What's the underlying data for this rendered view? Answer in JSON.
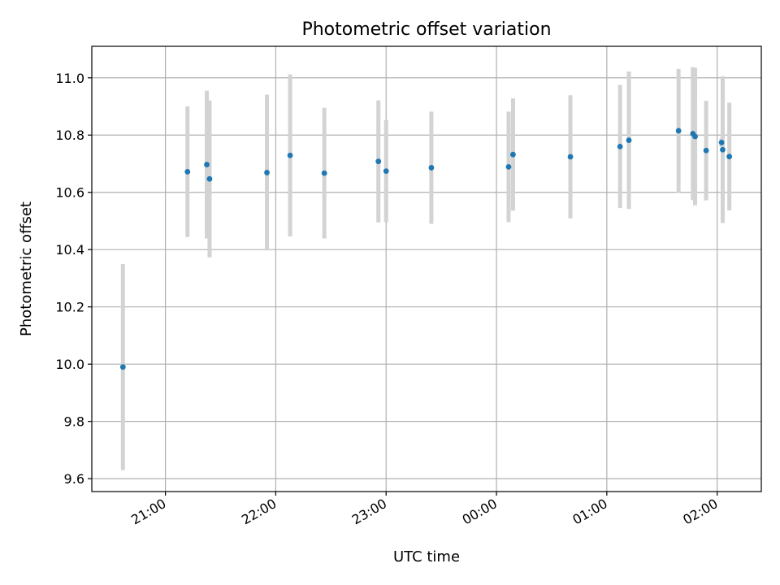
{
  "chart_data": {
    "type": "scatter",
    "title": "Photometric offset variation",
    "xlabel": "UTC time",
    "ylabel": "Photometric offset",
    "x_unit": "UTC time of night, tick labels HH:MM",
    "xlim": [
      "20:20",
      "02:24"
    ],
    "ylim": [
      9.555,
      11.11
    ],
    "grid": true,
    "x_ticks": [
      "21:00",
      "22:00",
      "23:00",
      "00:00",
      "01:00",
      "02:00"
    ],
    "y_ticks": [
      "9.6",
      "9.8",
      "10.0",
      "10.2",
      "10.4",
      "10.6",
      "10.8",
      "11.0"
    ],
    "x_tick_values": [
      21.0,
      22.0,
      23.0,
      24.0,
      25.0,
      26.0
    ],
    "y_tick_values": [
      9.6,
      9.8,
      10.0,
      10.2,
      10.4,
      10.6,
      10.8,
      11.0
    ],
    "x_range_hours": [
      20.333,
      26.4
    ],
    "point_color": "#1f77b4",
    "errorbar_color": "#d3d3d3",
    "series": [
      {
        "points": [
          {
            "x": 20.615,
            "y": 9.99,
            "err": 0.36
          },
          {
            "x": 21.2,
            "y": 10.672,
            "err": 0.228
          },
          {
            "x": 21.375,
            "y": 10.697,
            "err": 0.258
          },
          {
            "x": 21.4,
            "y": 10.647,
            "err": 0.274
          },
          {
            "x": 21.92,
            "y": 10.669,
            "err": 0.272
          },
          {
            "x": 22.13,
            "y": 10.729,
            "err": 0.283
          },
          {
            "x": 22.44,
            "y": 10.667,
            "err": 0.228
          },
          {
            "x": 22.93,
            "y": 10.708,
            "err": 0.213
          },
          {
            "x": 23.0,
            "y": 10.674,
            "err": 0.178
          },
          {
            "x": 23.41,
            "y": 10.686,
            "err": 0.196
          },
          {
            "x": 24.11,
            "y": 10.689,
            "err": 0.193
          },
          {
            "x": 24.15,
            "y": 10.732,
            "err": 0.196
          },
          {
            "x": 24.67,
            "y": 10.724,
            "err": 0.215
          },
          {
            "x": 25.12,
            "y": 10.76,
            "err": 0.215
          },
          {
            "x": 25.2,
            "y": 10.782,
            "err": 0.24
          },
          {
            "x": 25.65,
            "y": 10.815,
            "err": 0.216
          },
          {
            "x": 25.78,
            "y": 10.805,
            "err": 0.232
          },
          {
            "x": 25.8,
            "y": 10.795,
            "err": 0.24
          },
          {
            "x": 25.9,
            "y": 10.746,
            "err": 0.174
          },
          {
            "x": 26.04,
            "y": 10.774,
            "err": 0.016
          },
          {
            "x": 26.05,
            "y": 10.749,
            "err": 0.256
          },
          {
            "x": 26.11,
            "y": 10.725,
            "err": 0.188
          }
        ]
      }
    ]
  }
}
